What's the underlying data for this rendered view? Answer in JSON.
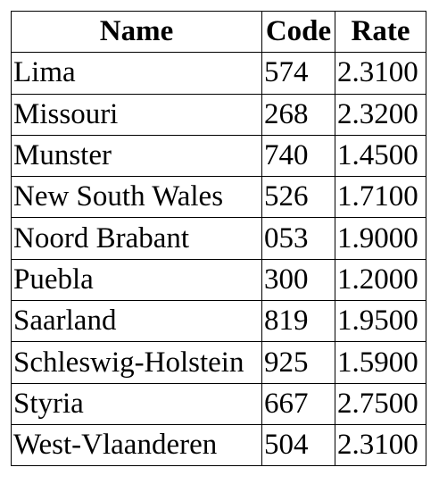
{
  "table": {
    "headers": [
      "Name",
      "Code",
      "Rate"
    ],
    "rows": [
      {
        "name": "Lima",
        "code": "574",
        "rate": "2.3100"
      },
      {
        "name": "Missouri",
        "code": "268",
        "rate": "2.3200"
      },
      {
        "name": "Munster",
        "code": "740",
        "rate": "1.4500"
      },
      {
        "name": "New South Wales",
        "code": "526",
        "rate": "1.7100"
      },
      {
        "name": "Noord Brabant",
        "code": "053",
        "rate": "1.9000"
      },
      {
        "name": "Puebla",
        "code": "300",
        "rate": "1.2000"
      },
      {
        "name": "Saarland",
        "code": "819",
        "rate": "1.9500"
      },
      {
        "name": "Schleswig-Holstein",
        "code": "925",
        "rate": "1.5900"
      },
      {
        "name": "Styria",
        "code": "667",
        "rate": "2.7500"
      },
      {
        "name": "West-Vlaanderen",
        "code": "504",
        "rate": "2.3100"
      }
    ]
  }
}
